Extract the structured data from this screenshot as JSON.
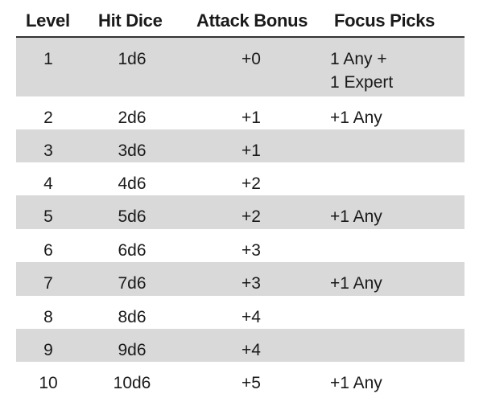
{
  "table": {
    "headers": {
      "level": "Level",
      "hit_dice": "Hit Dice",
      "attack_bonus": "Attack Bonus",
      "focus_picks": "Focus Picks"
    },
    "rows": [
      {
        "level": "1",
        "hit_dice": "1d6",
        "attack_bonus": "+0",
        "focus_picks": [
          "1 Any +",
          "1 Expert"
        ],
        "shaded": true
      },
      {
        "level": "2",
        "hit_dice": "2d6",
        "attack_bonus": "+1",
        "focus_picks": [
          "+1 Any"
        ],
        "shaded": false
      },
      {
        "level": "3",
        "hit_dice": "3d6",
        "attack_bonus": "+1",
        "focus_picks": [],
        "shaded": true
      },
      {
        "level": "4",
        "hit_dice": "4d6",
        "attack_bonus": "+2",
        "focus_picks": [],
        "shaded": false
      },
      {
        "level": "5",
        "hit_dice": "5d6",
        "attack_bonus": "+2",
        "focus_picks": [
          "+1 Any"
        ],
        "shaded": true
      },
      {
        "level": "6",
        "hit_dice": "6d6",
        "attack_bonus": "+3",
        "focus_picks": [],
        "shaded": false
      },
      {
        "level": "7",
        "hit_dice": "7d6",
        "attack_bonus": "+3",
        "focus_picks": [
          "+1 Any"
        ],
        "shaded": true
      },
      {
        "level": "8",
        "hit_dice": "8d6",
        "attack_bonus": "+4",
        "focus_picks": [],
        "shaded": false
      },
      {
        "level": "9",
        "hit_dice": "9d6",
        "attack_bonus": "+4",
        "focus_picks": [],
        "shaded": true
      },
      {
        "level": "10",
        "hit_dice": "10d6",
        "attack_bonus": "+5",
        "focus_picks": [
          "+1 Any"
        ],
        "shaded": false
      }
    ],
    "colors": {
      "shaded_row": "#d9d9d9",
      "header_rule": "#333333",
      "text": "#1a1a1a"
    }
  }
}
